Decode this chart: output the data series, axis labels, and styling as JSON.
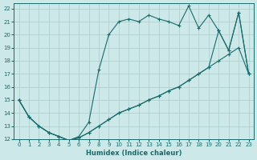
{
  "xlabel": "Humidex (Indice chaleur)",
  "bg_color": "#cce8e8",
  "grid_color": "#aacccc",
  "line_color": "#1a6b6b",
  "xlim": [
    -0.5,
    23.5
  ],
  "ylim": [
    12,
    22.4
  ],
  "xticks": [
    0,
    1,
    2,
    3,
    4,
    5,
    6,
    7,
    8,
    9,
    10,
    11,
    12,
    13,
    14,
    15,
    16,
    17,
    18,
    19,
    20,
    21,
    22,
    23
  ],
  "yticks": [
    12,
    13,
    14,
    15,
    16,
    17,
    18,
    19,
    20,
    21,
    22
  ],
  "line_bottom_x": [
    0,
    1,
    2,
    3,
    4,
    5,
    6,
    7,
    8,
    9,
    10,
    11,
    12,
    13,
    14,
    15,
    16,
    17,
    18,
    19,
    20,
    21,
    22,
    23
  ],
  "line_bottom_y": [
    15,
    13.7,
    13,
    12.5,
    12.2,
    11.9,
    12.1,
    12.5,
    13,
    13.5,
    14,
    14.3,
    14.6,
    15,
    15.3,
    15.7,
    16,
    16.5,
    17,
    17.5,
    18,
    18.5,
    19,
    17
  ],
  "line_top_x": [
    0,
    1,
    2,
    3,
    4,
    5,
    6,
    7,
    8,
    9,
    10,
    11,
    12,
    13,
    14,
    15,
    16,
    17,
    18,
    19,
    20,
    21,
    22,
    23
  ],
  "line_top_y": [
    15,
    13.7,
    13,
    12.5,
    12.2,
    11.9,
    12.2,
    13.3,
    17.3,
    20,
    21,
    21.2,
    21.0,
    21.5,
    21.2,
    21,
    20.7,
    22.2,
    20.5,
    21.5,
    20.3,
    18.8,
    21.7,
    17
  ],
  "line_mid_x": [
    0,
    1,
    2,
    3,
    4,
    5,
    6,
    7,
    8,
    9,
    10,
    11,
    12,
    13,
    14,
    15,
    16,
    17,
    18,
    19,
    20,
    21,
    22,
    23
  ],
  "line_mid_y": [
    15,
    13.7,
    13,
    12.5,
    12.2,
    11.9,
    12.1,
    12.5,
    13,
    13.5,
    14,
    14.3,
    14.6,
    15,
    15.3,
    15.7,
    16,
    16.5,
    17,
    17.5,
    20.3,
    18.8,
    21.7,
    17
  ]
}
